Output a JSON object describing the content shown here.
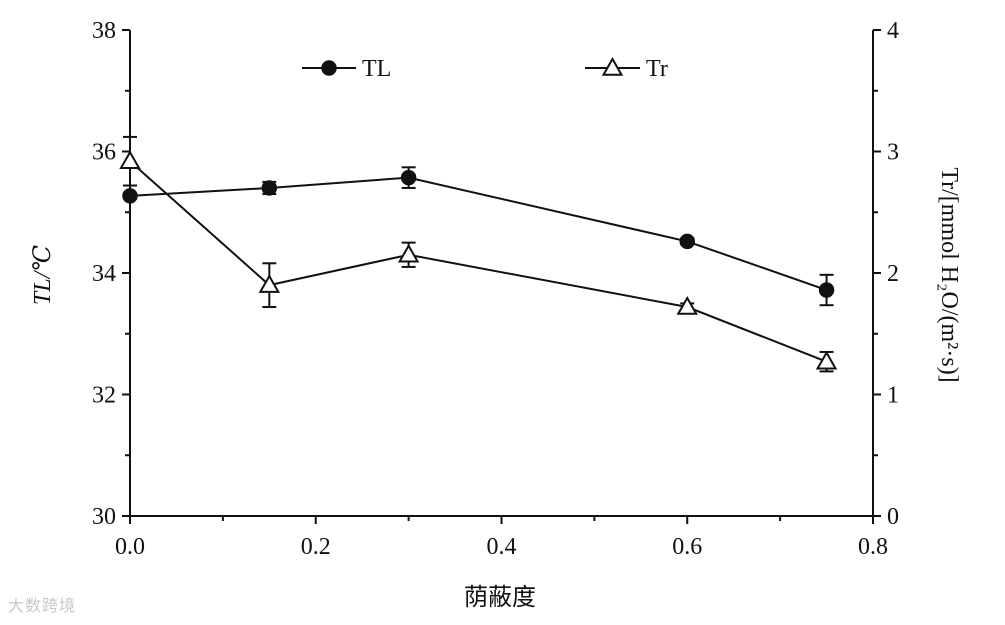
{
  "chart_data": {
    "type": "line",
    "xlabel": "荫蔽度",
    "ylabel_left": "TL/℃",
    "ylabel_right": "Tr/[mmol H₂O/(m²·s)]",
    "xlim": [
      0.0,
      0.8
    ],
    "ylim_left": [
      30,
      38
    ],
    "ylim_right": [
      0,
      4
    ],
    "x_ticks": [
      0.0,
      0.2,
      0.4,
      0.6,
      0.8
    ],
    "x_tick_labels": [
      "0.0",
      "0.2",
      "0.4",
      "0.6",
      "0.8"
    ],
    "y_left_ticks": [
      30,
      32,
      34,
      36,
      38
    ],
    "y_left_tick_labels": [
      "30",
      "32",
      "34",
      "36",
      "38"
    ],
    "y_right_ticks": [
      0,
      1,
      2,
      3,
      4
    ],
    "y_right_tick_labels": [
      "0",
      "1",
      "2",
      "3",
      "4"
    ],
    "grid": false,
    "legend_position": "top",
    "series": [
      {
        "name": "TL",
        "axis": "left",
        "marker": "filled-circle",
        "x": [
          0.0,
          0.15,
          0.3,
          0.6,
          0.75
        ],
        "y": [
          35.27,
          35.4,
          35.57,
          34.52,
          33.72
        ],
        "err": [
          0.0,
          0.1,
          0.17,
          0.05,
          0.25
        ]
      },
      {
        "name": "Tr",
        "axis": "right",
        "marker": "open-triangle",
        "x": [
          0.0,
          0.15,
          0.3,
          0.6,
          0.75
        ],
        "y": [
          2.92,
          1.9,
          2.15,
          1.72,
          1.27
        ],
        "err": [
          0.2,
          0.18,
          0.1,
          0.03,
          0.08
        ]
      }
    ]
  },
  "watermark": "大数跨境"
}
